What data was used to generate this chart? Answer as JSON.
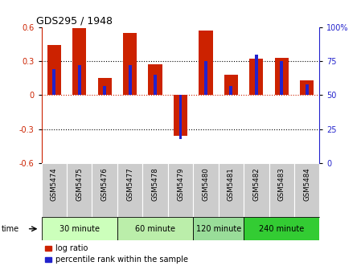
{
  "title": "GDS295 / 1948",
  "samples": [
    "GSM5474",
    "GSM5475",
    "GSM5476",
    "GSM5477",
    "GSM5478",
    "GSM5479",
    "GSM5480",
    "GSM5481",
    "GSM5482",
    "GSM5483",
    "GSM5484"
  ],
  "log_ratio": [
    0.44,
    0.59,
    0.15,
    0.55,
    0.27,
    -0.36,
    0.57,
    0.18,
    0.32,
    0.33,
    0.13
  ],
  "percentile": [
    69,
    72,
    57,
    72,
    65,
    18,
    75,
    57,
    80,
    75,
    58
  ],
  "ylim": [
    -0.6,
    0.6
  ],
  "yticks_left": [
    -0.6,
    -0.3,
    0,
    0.3,
    0.6
  ],
  "yticks_right": [
    0,
    25,
    50,
    75,
    100
  ],
  "bar_color": "#cc2200",
  "pct_color": "#2222cc",
  "groups": [
    {
      "label": "30 minute",
      "start": 0,
      "end": 3,
      "color": "#ccffbb"
    },
    {
      "label": "60 minute",
      "start": 3,
      "end": 6,
      "color": "#bbeeaa"
    },
    {
      "label": "120 minute",
      "start": 6,
      "end": 8,
      "color": "#99dd99"
    },
    {
      "label": "240 minute",
      "start": 8,
      "end": 11,
      "color": "#33cc33"
    }
  ],
  "time_label": "time",
  "legend_log": "log ratio",
  "legend_pct": "percentile rank within the sample",
  "grid_color": "#000000",
  "zero_line_color": "#cc2200",
  "bg_plot": "#ffffff",
  "bg_xtick": "#cccccc"
}
